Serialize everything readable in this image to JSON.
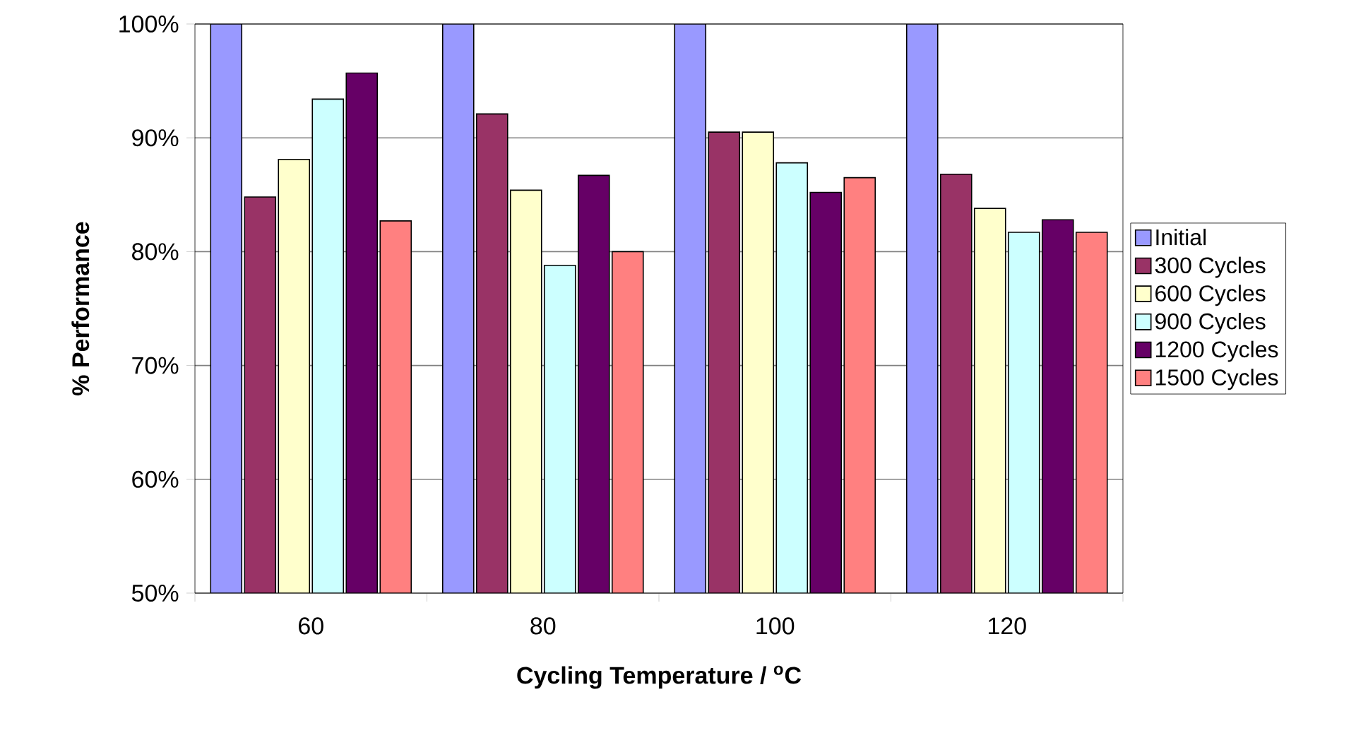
{
  "chart_data": {
    "type": "bar",
    "xlabel": "Cycling Temperature / $^{o}$C",
    "ylabel": "% Performance",
    "categories": [
      "60",
      "80",
      "100",
      "120"
    ],
    "series": [
      {
        "name": "Initial",
        "color": "#9999ff",
        "values": [
          100,
          100,
          100,
          100
        ]
      },
      {
        "name": "300 Cycles",
        "color": "#993366",
        "values": [
          84.8,
          92.1,
          90.5,
          86.8
        ]
      },
      {
        "name": "600 Cycles",
        "color": "#ffffcc",
        "values": [
          88.1,
          85.4,
          90.5,
          83.8
        ]
      },
      {
        "name": "900 Cycles",
        "color": "#ccffff",
        "values": [
          93.4,
          78.8,
          87.8,
          81.7
        ]
      },
      {
        "name": "1200 Cycles",
        "color": "#660066",
        "values": [
          95.7,
          86.7,
          85.2,
          82.8
        ]
      },
      {
        "name": "1500 Cycles",
        "color": "#ff8080",
        "values": [
          82.7,
          80.0,
          86.5,
          81.7
        ]
      }
    ],
    "ylim": [
      50,
      100
    ],
    "yticks": [
      {
        "value": 50,
        "label": "50%"
      },
      {
        "value": 60,
        "label": "60%"
      },
      {
        "value": 70,
        "label": "70%"
      },
      {
        "value": 80,
        "label": "80%"
      },
      {
        "value": 90,
        "label": "90%"
      },
      {
        "value": 100,
        "label": "100%"
      }
    ],
    "grid": "y",
    "legend": "right"
  }
}
